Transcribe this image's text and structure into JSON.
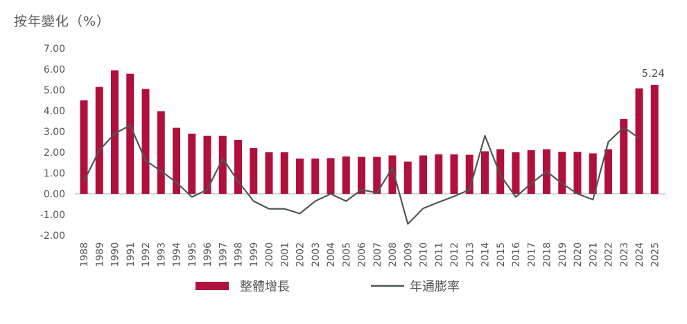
{
  "chart_data": {
    "type": "bar",
    "title": "按年變化（%）",
    "ylim": [
      -2,
      7
    ],
    "yticks": [
      "7.00",
      "6.00",
      "5.00",
      "4.00",
      "3.00",
      "2.00",
      "1.00",
      "0.00",
      "-1.00",
      "-2.00"
    ],
    "categories": [
      "1988",
      "1989",
      "1990",
      "1991",
      "1992",
      "1993",
      "1994",
      "1995",
      "1996",
      "1997",
      "1998",
      "1999",
      "2000",
      "2001",
      "2002",
      "2003",
      "2004",
      "2005",
      "2006",
      "2007",
      "2008",
      "2009",
      "2010",
      "2011",
      "2012",
      "2013",
      "2014",
      "2015",
      "2016",
      "2017",
      "2018",
      "2019",
      "2020",
      "2021",
      "2022",
      "2023",
      "2024",
      "2025"
    ],
    "series": [
      {
        "name": "整體增長",
        "type": "bar",
        "color": "#b0103c",
        "values": [
          4.5,
          5.15,
          5.95,
          5.78,
          5.05,
          3.98,
          3.18,
          2.9,
          2.8,
          2.8,
          2.6,
          2.2,
          2.0,
          2.0,
          1.7,
          1.7,
          1.72,
          1.8,
          1.78,
          1.78,
          1.85,
          1.55,
          1.85,
          1.9,
          1.9,
          1.88,
          2.05,
          2.15,
          2.0,
          2.1,
          2.15,
          2.02,
          2.02,
          1.95,
          2.15,
          3.6,
          5.08,
          5.24
        ]
      },
      {
        "name": "年通膨率",
        "type": "line",
        "color": "#4d5659",
        "values": [
          0.6,
          2.1,
          2.9,
          3.3,
          1.6,
          1.1,
          0.55,
          -0.15,
          0.2,
          1.7,
          0.6,
          -0.35,
          -0.72,
          -0.72,
          -0.95,
          -0.35,
          0.0,
          -0.35,
          0.2,
          0.05,
          1.25,
          -1.45,
          -0.7,
          -0.4,
          -0.12,
          0.2,
          2.8,
          0.9,
          -0.15,
          0.5,
          1.08,
          0.5,
          0.0,
          -0.28,
          2.5,
          3.2,
          2.68,
          null
        ]
      }
    ],
    "annotations": [
      {
        "category": "2025",
        "text": "5.24"
      }
    ],
    "legend": "bottom-center",
    "grid": false
  }
}
